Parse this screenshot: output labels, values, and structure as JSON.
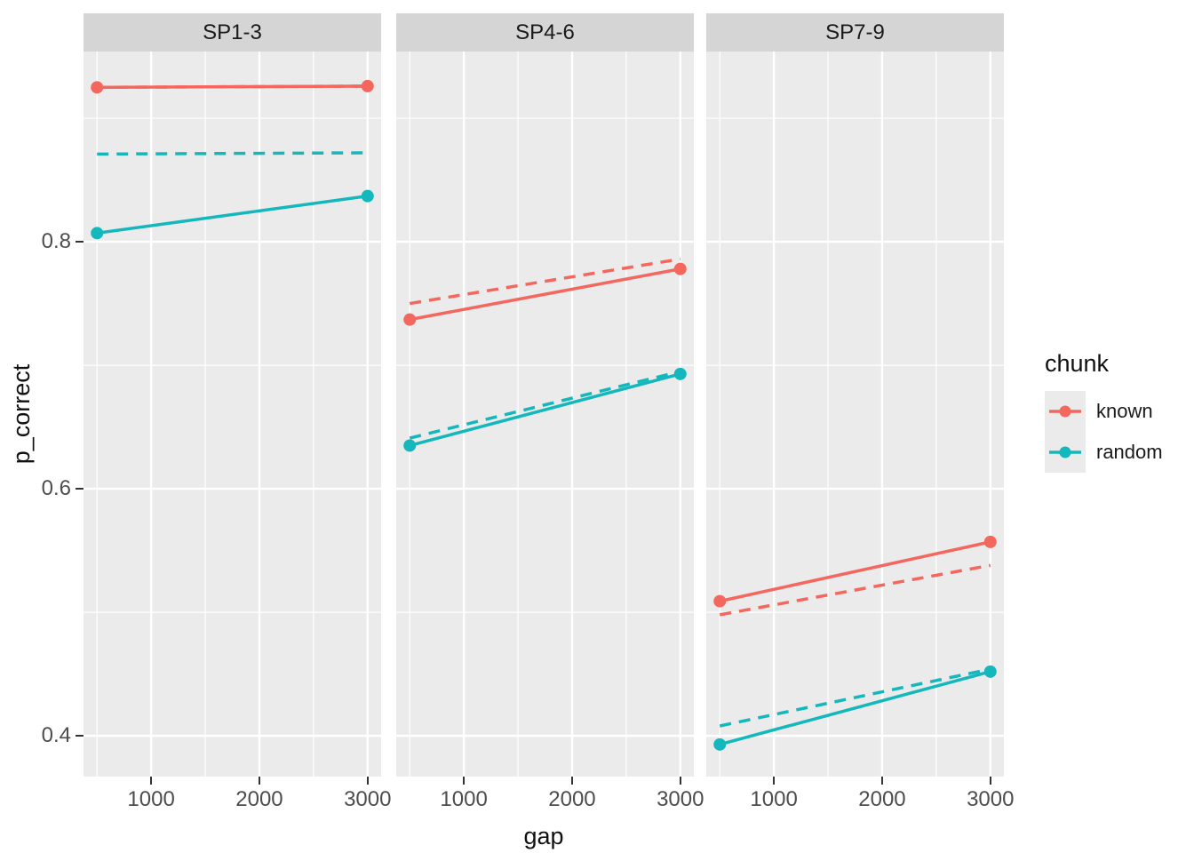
{
  "chart_data": {
    "type": "line",
    "xlabel": "gap",
    "ylabel": "p_correct",
    "xlim": [
      375,
      3125
    ],
    "ylim": [
      0.367,
      0.954
    ],
    "x_values": [
      500,
      3000
    ],
    "x_major_ticks": [
      {
        "v": 1000,
        "label": "1000"
      },
      {
        "v": 2000,
        "label": "2000"
      },
      {
        "v": 3000,
        "label": "3000"
      }
    ],
    "x_minor_ticks": [
      500,
      1500,
      2500
    ],
    "y_major_ticks": [
      {
        "v": 0.4,
        "label": "0.4"
      },
      {
        "v": 0.6,
        "label": "0.6"
      },
      {
        "v": 0.8,
        "label": "0.8"
      }
    ],
    "y_minor_ticks": [
      0.5,
      0.7,
      0.9
    ],
    "grid": "on",
    "colors": {
      "known": "#F4675F",
      "random": "#14B8BC"
    },
    "panel_bg": "#EBEBEB",
    "strip_bg": "#D5D5D5",
    "grid_color": "#FFFFFF",
    "facets": [
      {
        "label": "SP1-3",
        "series": [
          {
            "chunk": "known",
            "linetype": "dashed",
            "points": false,
            "y": [
              0.925,
              0.926
            ]
          },
          {
            "chunk": "random",
            "linetype": "dashed",
            "points": false,
            "y": [
              0.871,
              0.872
            ]
          },
          {
            "chunk": "known",
            "linetype": "solid",
            "points": true,
            "y": [
              0.925,
              0.926
            ]
          },
          {
            "chunk": "random",
            "linetype": "solid",
            "points": true,
            "y": [
              0.807,
              0.837
            ]
          }
        ]
      },
      {
        "label": "SP4-6",
        "series": [
          {
            "chunk": "known",
            "linetype": "dashed",
            "points": false,
            "y": [
              0.75,
              0.786
            ]
          },
          {
            "chunk": "random",
            "linetype": "dashed",
            "points": false,
            "y": [
              0.641,
              0.695
            ]
          },
          {
            "chunk": "known",
            "linetype": "solid",
            "points": true,
            "y": [
              0.737,
              0.778
            ]
          },
          {
            "chunk": "random",
            "linetype": "solid",
            "points": true,
            "y": [
              0.635,
              0.693
            ]
          }
        ]
      },
      {
        "label": "SP7-9",
        "series": [
          {
            "chunk": "known",
            "linetype": "dashed",
            "points": false,
            "y": [
              0.498,
              0.538
            ]
          },
          {
            "chunk": "random",
            "linetype": "dashed",
            "points": false,
            "y": [
              0.408,
              0.454
            ]
          },
          {
            "chunk": "known",
            "linetype": "solid",
            "points": true,
            "y": [
              0.509,
              0.557
            ]
          },
          {
            "chunk": "random",
            "linetype": "solid",
            "points": true,
            "y": [
              0.393,
              0.452
            ]
          }
        ]
      }
    ],
    "legend": {
      "title": "chunk",
      "entries": [
        {
          "label": "known",
          "color": "#F4675F"
        },
        {
          "label": "random",
          "color": "#14B8BC"
        }
      ]
    }
  }
}
